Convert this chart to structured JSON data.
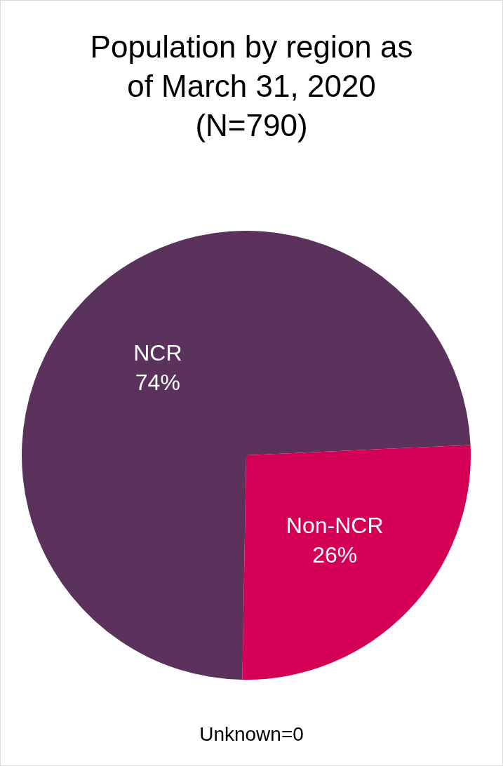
{
  "chart_data": {
    "type": "pie",
    "title": "Population by region as of March 31, 2020 (N=790)",
    "categories": [
      "NCR",
      "Non-NCR"
    ],
    "values": [
      74,
      26
    ],
    "colors": [
      "#5a325c",
      "#d40055"
    ],
    "value_labels": [
      "74%",
      "26%"
    ],
    "legend": false,
    "annotations": [
      "Unknown=0"
    ]
  }
}
